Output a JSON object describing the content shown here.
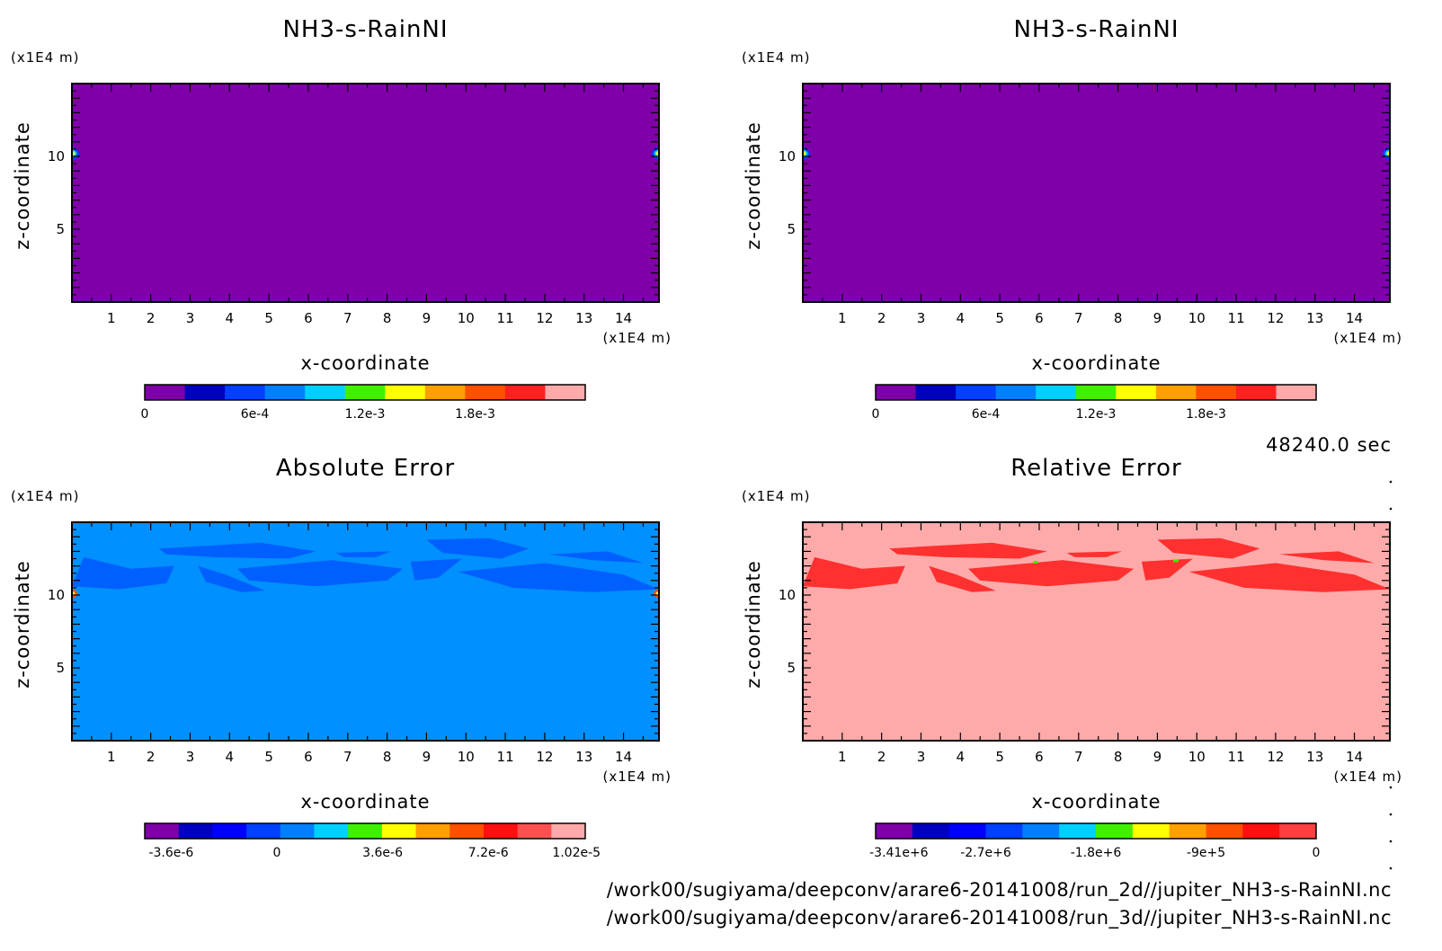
{
  "chart_data": [
    {
      "type": "heatmap",
      "title": "NH3-s-RainNI",
      "xlabel": "x-coordinate",
      "ylabel": "z-coordinate",
      "x_unit": "(x1E4 m)",
      "y_unit": "(x1E4 m)",
      "x_ticks": [
        1,
        2,
        3,
        4,
        5,
        6,
        7,
        8,
        9,
        10,
        11,
        12,
        13,
        14
      ],
      "y_ticks": [
        5,
        10
      ],
      "xlim": [
        0,
        14.9
      ],
      "ylim": [
        0,
        15
      ],
      "colorbar": {
        "colors": [
          "#7f00a8",
          "#0000c0",
          "#0040ff",
          "#0080ff",
          "#00d0ff",
          "#40f000",
          "#ffff00",
          "#ff9f00",
          "#ff5000",
          "#ff2020",
          "#ffaaaa"
        ],
        "ticks": [
          "0",
          "6e-4",
          "1.2e-3",
          "1.8e-3"
        ],
        "range": [
          0,
          0.0024
        ]
      },
      "background": "#7f00a8"
    },
    {
      "type": "heatmap",
      "title": "NH3-s-RainNI",
      "xlabel": "x-coordinate",
      "ylabel": "z-coordinate",
      "x_unit": "(x1E4 m)",
      "y_unit": "(x1E4 m)",
      "x_ticks": [
        1,
        2,
        3,
        4,
        5,
        6,
        7,
        8,
        9,
        10,
        11,
        12,
        13,
        14
      ],
      "y_ticks": [
        5,
        10
      ],
      "xlim": [
        0,
        14.9
      ],
      "ylim": [
        0,
        15
      ],
      "colorbar": {
        "colors": [
          "#7f00a8",
          "#0000c0",
          "#0040ff",
          "#0080ff",
          "#00d0ff",
          "#40f000",
          "#ffff00",
          "#ff9f00",
          "#ff5000",
          "#ff2020",
          "#ffaaaa"
        ],
        "ticks": [
          "0",
          "6e-4",
          "1.2e-3",
          "1.8e-3"
        ],
        "range": [
          0,
          0.0024
        ]
      },
      "background": "#7f00a8"
    },
    {
      "type": "heatmap",
      "title": "Absolute Error",
      "xlabel": "x-coordinate",
      "ylabel": "z-coordinate",
      "x_unit": "(x1E4 m)",
      "y_unit": "(x1E4 m)",
      "x_ticks": [
        1,
        2,
        3,
        4,
        5,
        6,
        7,
        8,
        9,
        10,
        11,
        12,
        13,
        14
      ],
      "y_ticks": [
        5,
        10
      ],
      "xlim": [
        0,
        14.9
      ],
      "ylim": [
        0,
        15
      ],
      "colorbar": {
        "colors": [
          "#7f00a8",
          "#0000c0",
          "#0000ff",
          "#0040ff",
          "#0080ff",
          "#00d0ff",
          "#40f000",
          "#ffff00",
          "#ff9f00",
          "#ff5000",
          "#ff1010",
          "#ff5050",
          "#ffaaaa"
        ],
        "ticks": [
          "-3.6e-6",
          "0",
          "3.6e-6",
          "7.2e-6",
          "1.02e-5"
        ],
        "range": [
          -4.5e-06,
          1.05e-05
        ]
      },
      "background": "#0090ff"
    },
    {
      "type": "heatmap",
      "title": "Relative Error",
      "xlabel": "x-coordinate",
      "ylabel": "z-coordinate",
      "x_unit": "(x1E4 m)",
      "y_unit": "(x1E4 m)",
      "x_ticks": [
        1,
        2,
        3,
        4,
        5,
        6,
        7,
        8,
        9,
        10,
        11,
        12,
        13,
        14
      ],
      "y_ticks": [
        5,
        10
      ],
      "xlim": [
        0,
        14.9
      ],
      "ylim": [
        0,
        15
      ],
      "colorbar": {
        "colors": [
          "#7f00a8",
          "#0000c0",
          "#0000ff",
          "#0040ff",
          "#0080ff",
          "#00d0ff",
          "#40f000",
          "#ffff00",
          "#ff9f00",
          "#ff5000",
          "#ff1010",
          "#ff4040"
        ],
        "ticks": [
          "-3.41e+6",
          "-2.7e+6",
          "-1.8e+6",
          "-9e+5",
          "0"
        ],
        "range": [
          -3600000.0,
          0
        ]
      },
      "background": "#ffaaaa"
    }
  ],
  "time_label": "48240.0 sec",
  "footer": {
    "line1": "/work00/sugiyama/deepconv/arare6-20141008/run_2d//jupiter_NH3-s-RainNI.nc",
    "line2": "/work00/sugiyama/deepconv/arare6-20141008/run_3d//jupiter_NH3-s-RainNI.nc"
  }
}
